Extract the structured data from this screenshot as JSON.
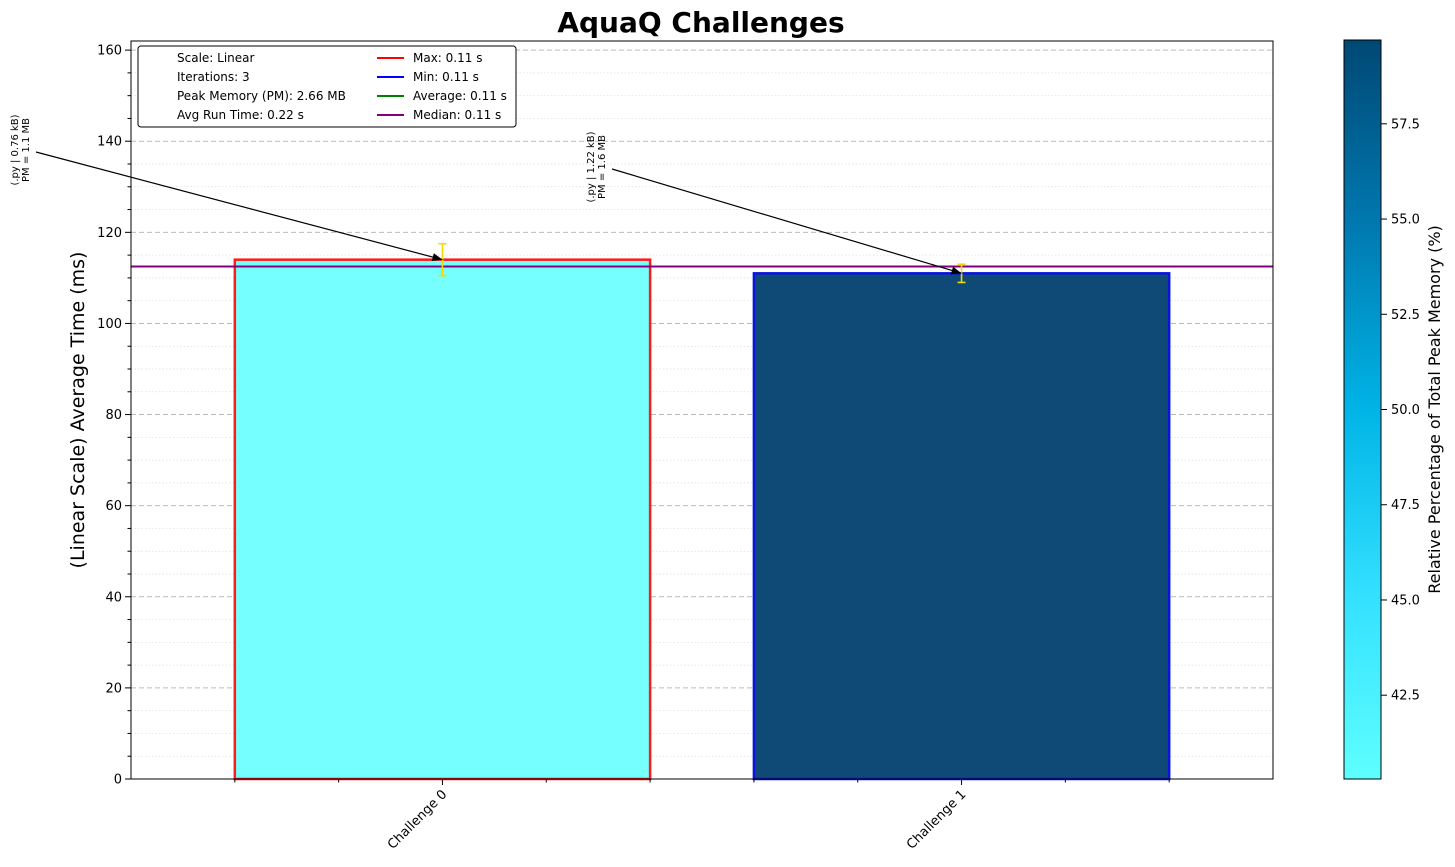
{
  "chart_data": {
    "type": "bar",
    "title": "AquaQ Challenges",
    "ylabel": "(Linear Scale) Average Time (ms)",
    "xlabel": "",
    "categories": [
      "Challenge 0",
      "Challenge 1"
    ],
    "values": [
      114,
      111
    ],
    "errors": [
      3.5,
      2.0
    ],
    "ylim": [
      0,
      162
    ],
    "yticks": [
      0,
      20,
      40,
      60,
      80,
      100,
      120,
      140,
      160
    ],
    "bar_fill_colors": [
      "#76ffff",
      "#0e4a75"
    ],
    "bar_edge_colors": [
      "#ff1a1a",
      "#0a14e0"
    ],
    "error_color": "#f5d800",
    "median_line": {
      "value": 112.5,
      "color": "#800080"
    },
    "grid": true,
    "annotations": [
      {
        "line1": "(.py | 0.76 kB)",
        "line2": "PM = 1.1 MB",
        "target_index": 0
      },
      {
        "line1": "(.py | 1.22 kB)",
        "line2": "PM = 1.6 MB",
        "target_index": 1
      }
    ],
    "legend": {
      "placement": "top-left",
      "info": [
        "Scale: Linear",
        "Iterations: 3",
        "Peak Memory (PM): 2.66 MB",
        "Avg Run Time: 0.22 s"
      ],
      "lines": [
        {
          "label": "Max: 0.11 s",
          "color": "#ff0000"
        },
        {
          "label": "Min: 0.11 s",
          "color": "#0000ff"
        },
        {
          "label": "Average: 0.11 s",
          "color": "#008000"
        },
        {
          "label": "Median: 0.11 s",
          "color": "#800080"
        }
      ]
    },
    "colorbar": {
      "label": "Relative Percentage of Total Peak Memory (%)",
      "range": [
        40.3,
        59.7
      ],
      "ticks": [
        "42.5",
        "45.0",
        "47.5",
        "50.0",
        "52.5",
        "55.0",
        "57.5"
      ],
      "tick_values": [
        42.5,
        45.0,
        47.5,
        50.0,
        52.5,
        55.0,
        57.5
      ],
      "colors": [
        "#5effff",
        "#33e0ff",
        "#00b4e6",
        "#0079b0",
        "#004874"
      ]
    }
  }
}
